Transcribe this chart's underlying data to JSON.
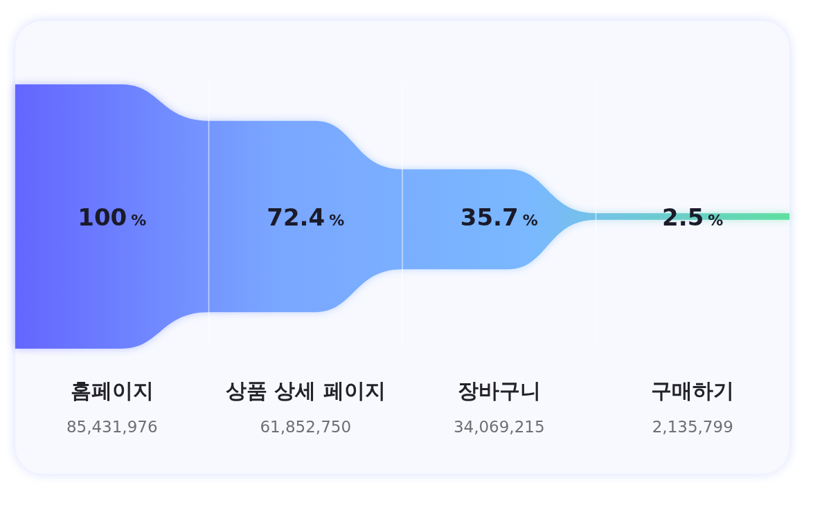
{
  "chart_data": {
    "type": "other",
    "categories": [
      "홈페이지",
      "상품 상세 페이지",
      "장바구니",
      "구매하기"
    ],
    "series": [
      {
        "color": "#6466ff",
        "values": [
          100,
          72.4,
          35.7,
          2.5
        ],
        "value_labels": [
          "100 %",
          "72.4 %",
          "35.7 %",
          "2.5 %"
        ]
      },
      {
        "color": "#6e6e73",
        "values": [
          85431976,
          61852750,
          34069215,
          2135799
        ],
        "value_labels": [
          "85,431,976",
          "61,852,750",
          "34,069,215",
          "2,135,799"
        ]
      }
    ],
    "colors": [
      "#6466ff",
      "#7aa6ff",
      "#7ab8ff",
      "#5ee0a0"
    ]
  }
}
